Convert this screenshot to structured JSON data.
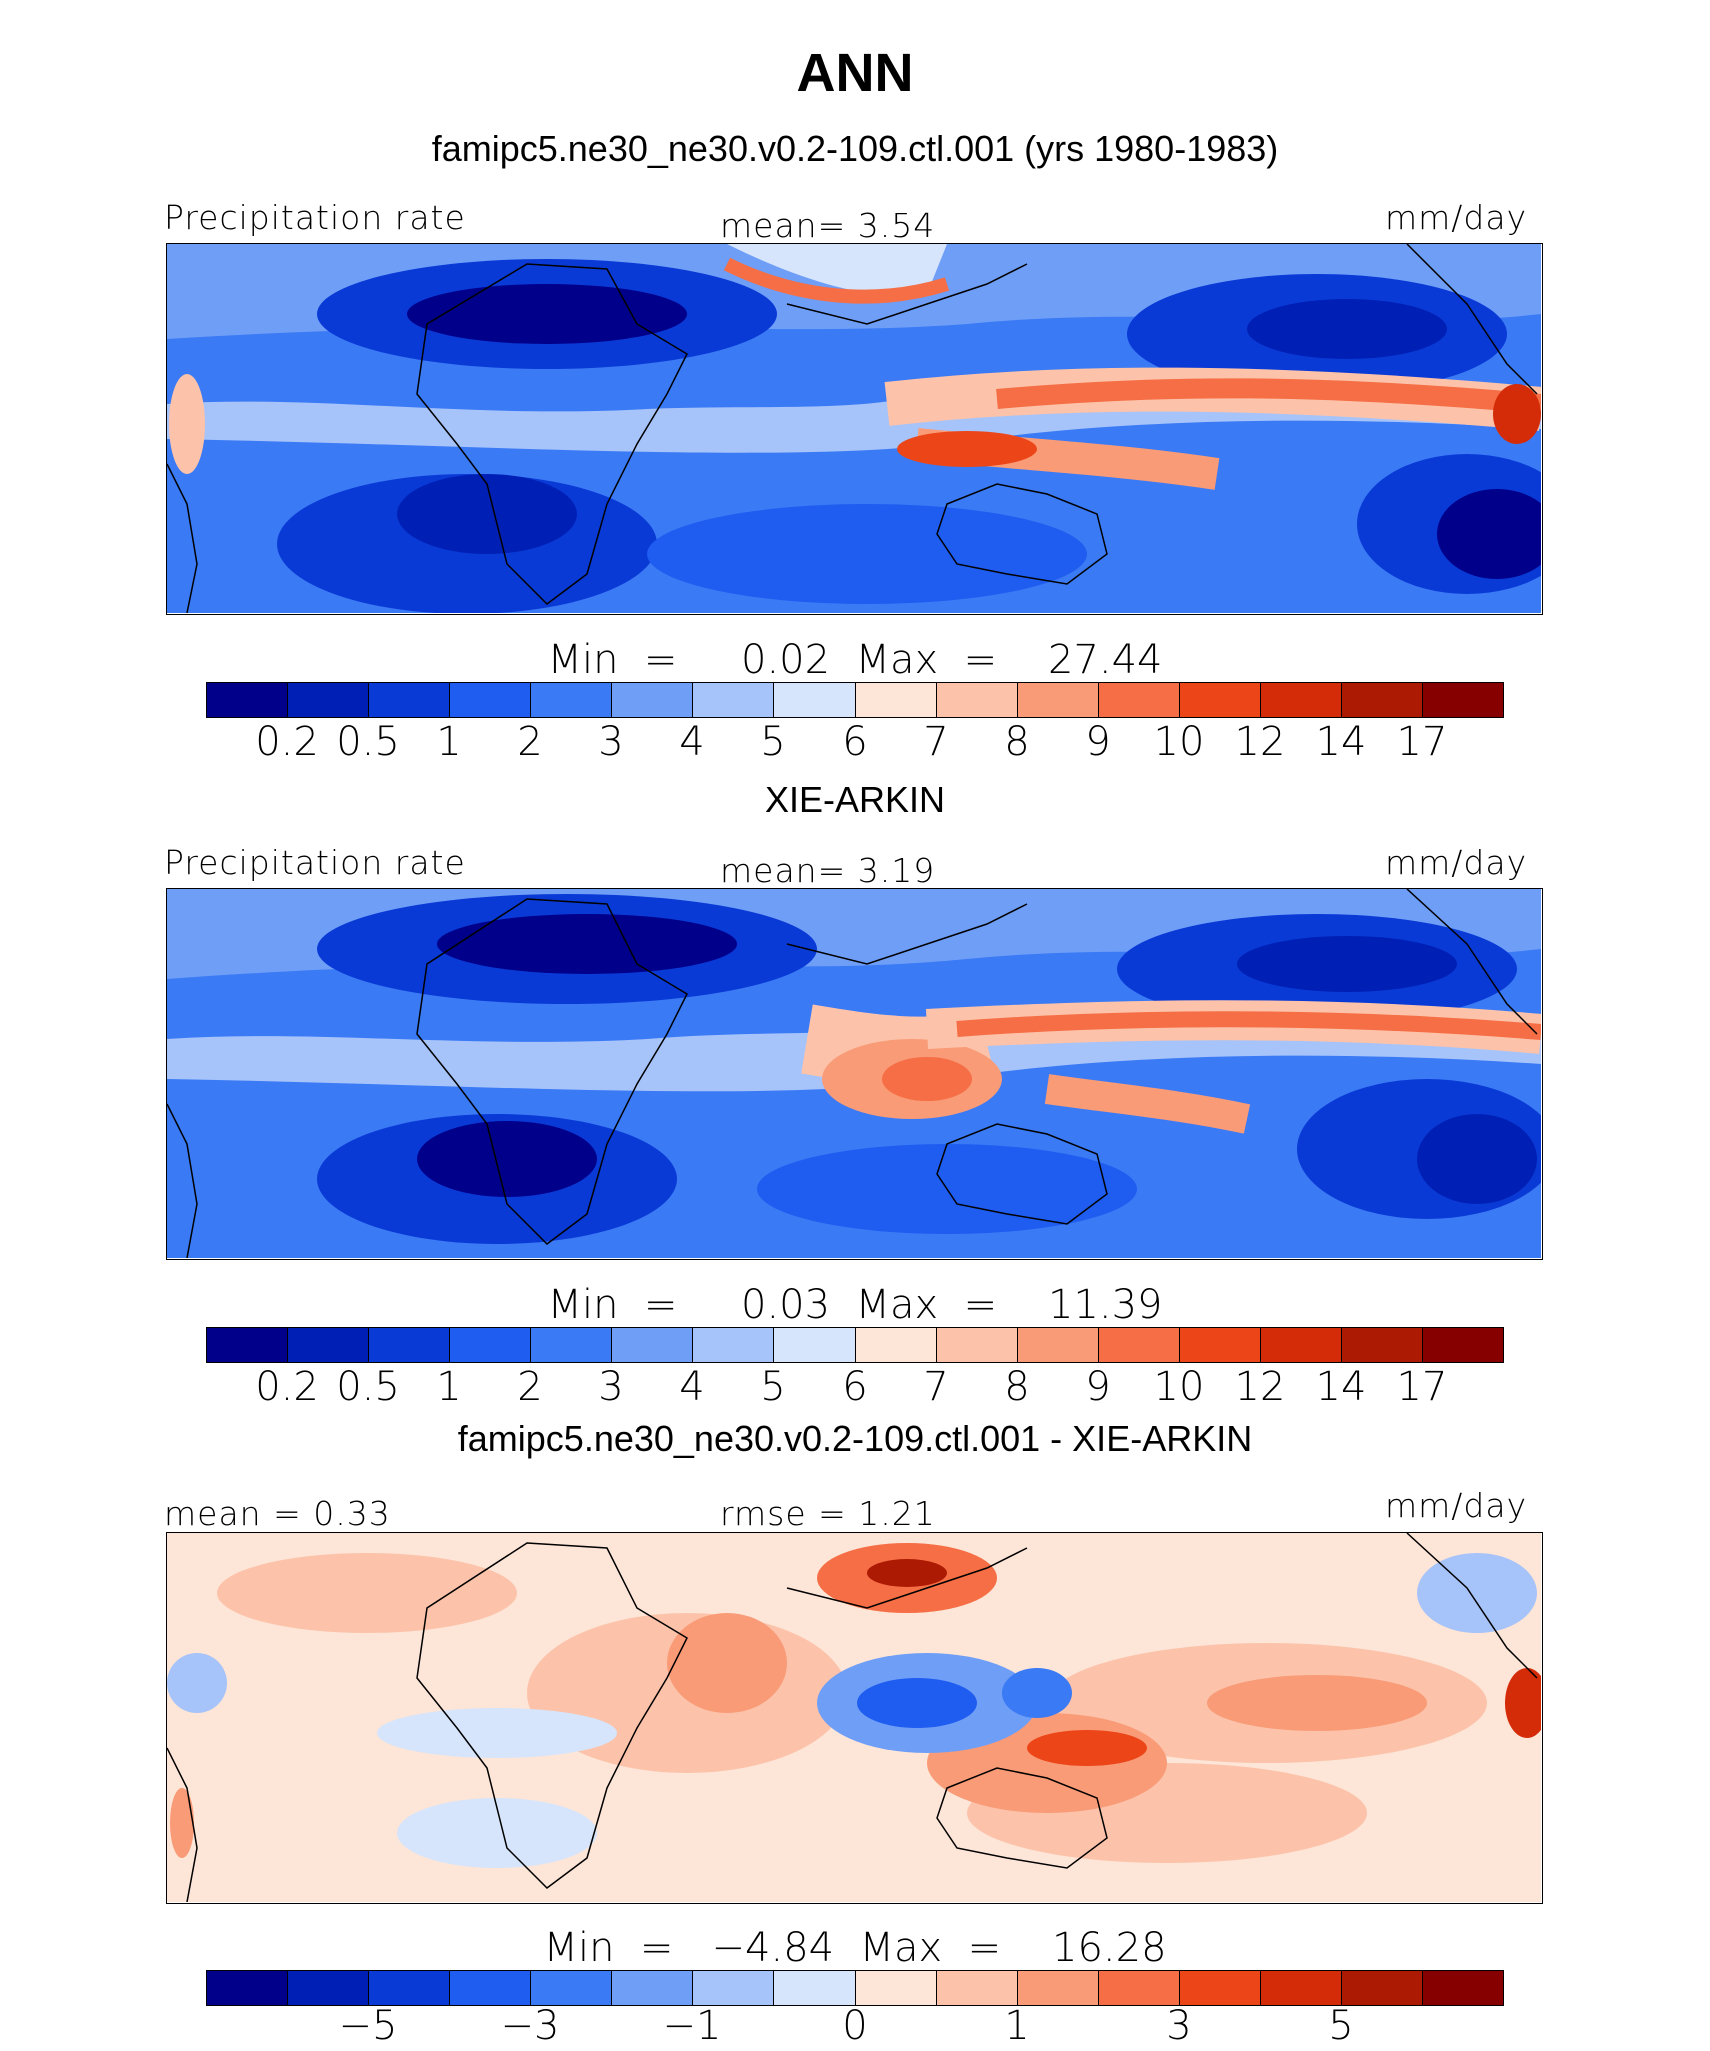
{
  "title": "ANN",
  "panels": [
    {
      "heading": "famipc5.ne30_ne30.v0.2-109.ctl.001 (yrs 1980-1983)",
      "left_label": "Precipitation rate",
      "center_label": "mean=    3.54",
      "units": "mm/day",
      "minmax": "Min  =     0.02  Max  =    27.44",
      "colorbar_ticks": [
        "0.2",
        "0.5",
        "1",
        "2",
        "3",
        "4",
        "5",
        "6",
        "7",
        "8",
        "9",
        "10",
        "12",
        "14",
        "17"
      ]
    },
    {
      "heading": "XIE-ARKIN",
      "left_label": "Precipitation rate",
      "center_label": "mean=    3.19",
      "units": "mm/day",
      "minmax": "Min  =     0.03  Max  =    11.39",
      "colorbar_ticks": [
        "0.2",
        "0.5",
        "1",
        "2",
        "3",
        "4",
        "5",
        "6",
        "7",
        "8",
        "9",
        "10",
        "12",
        "14",
        "17"
      ]
    },
    {
      "heading": "famipc5.ne30_ne30.v0.2-109.ctl.001 - XIE-ARKIN",
      "left_label": "mean  =    0.33",
      "center_label": "rmse  =    1.21",
      "units": "mm/day",
      "minmax": "Min  =   −4.84  Max  =    16.28",
      "colorbar_ticks": [
        "−5",
        "−3",
        "−1",
        "0",
        "1",
        "3",
        "5"
      ]
    }
  ],
  "colors": {
    "palette": [
      "#00008a",
      "#0020b5",
      "#0a3ad6",
      "#1f5cf0",
      "#3a7af5",
      "#6f9ef7",
      "#a6c3fa",
      "#d6e5fb",
      "#fde5d7",
      "#fcc3aa",
      "#f99b77",
      "#f56e45",
      "#ec4518",
      "#d42c08",
      "#ad1a03",
      "#860000"
    ]
  }
}
